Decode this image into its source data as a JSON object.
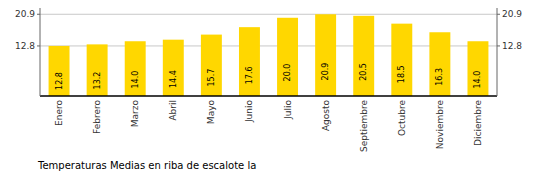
{
  "chart_data": {
    "type": "bar",
    "title": "Temperaturas Medias en riba de escalote la",
    "categories": [
      "Enero",
      "Febrero",
      "Marzo",
      "Abril",
      "Mayo",
      "Junio",
      "Julio",
      "Agosto",
      "Septiembre",
      "Octubre",
      "Noviembre",
      "Diciembre"
    ],
    "values": [
      12.8,
      13.2,
      14.0,
      14.4,
      15.7,
      17.6,
      20.0,
      20.9,
      20.5,
      18.5,
      16.3,
      14.0
    ],
    "value_labels": [
      "12.8",
      "13.2",
      "14.0",
      "14.4",
      "15.7",
      "17.6",
      "20.0",
      "20.9",
      "20.5",
      "18.5",
      "16.3",
      "14.0"
    ],
    "data_labels": true,
    "color": "#FFD700",
    "ylim": [
      0,
      22.5
    ],
    "yticks": [
      12.8,
      20.9
    ],
    "y2lim": [
      0,
      22.5
    ],
    "y2ticks": [
      12.8,
      20.9
    ],
    "grid": true
  }
}
